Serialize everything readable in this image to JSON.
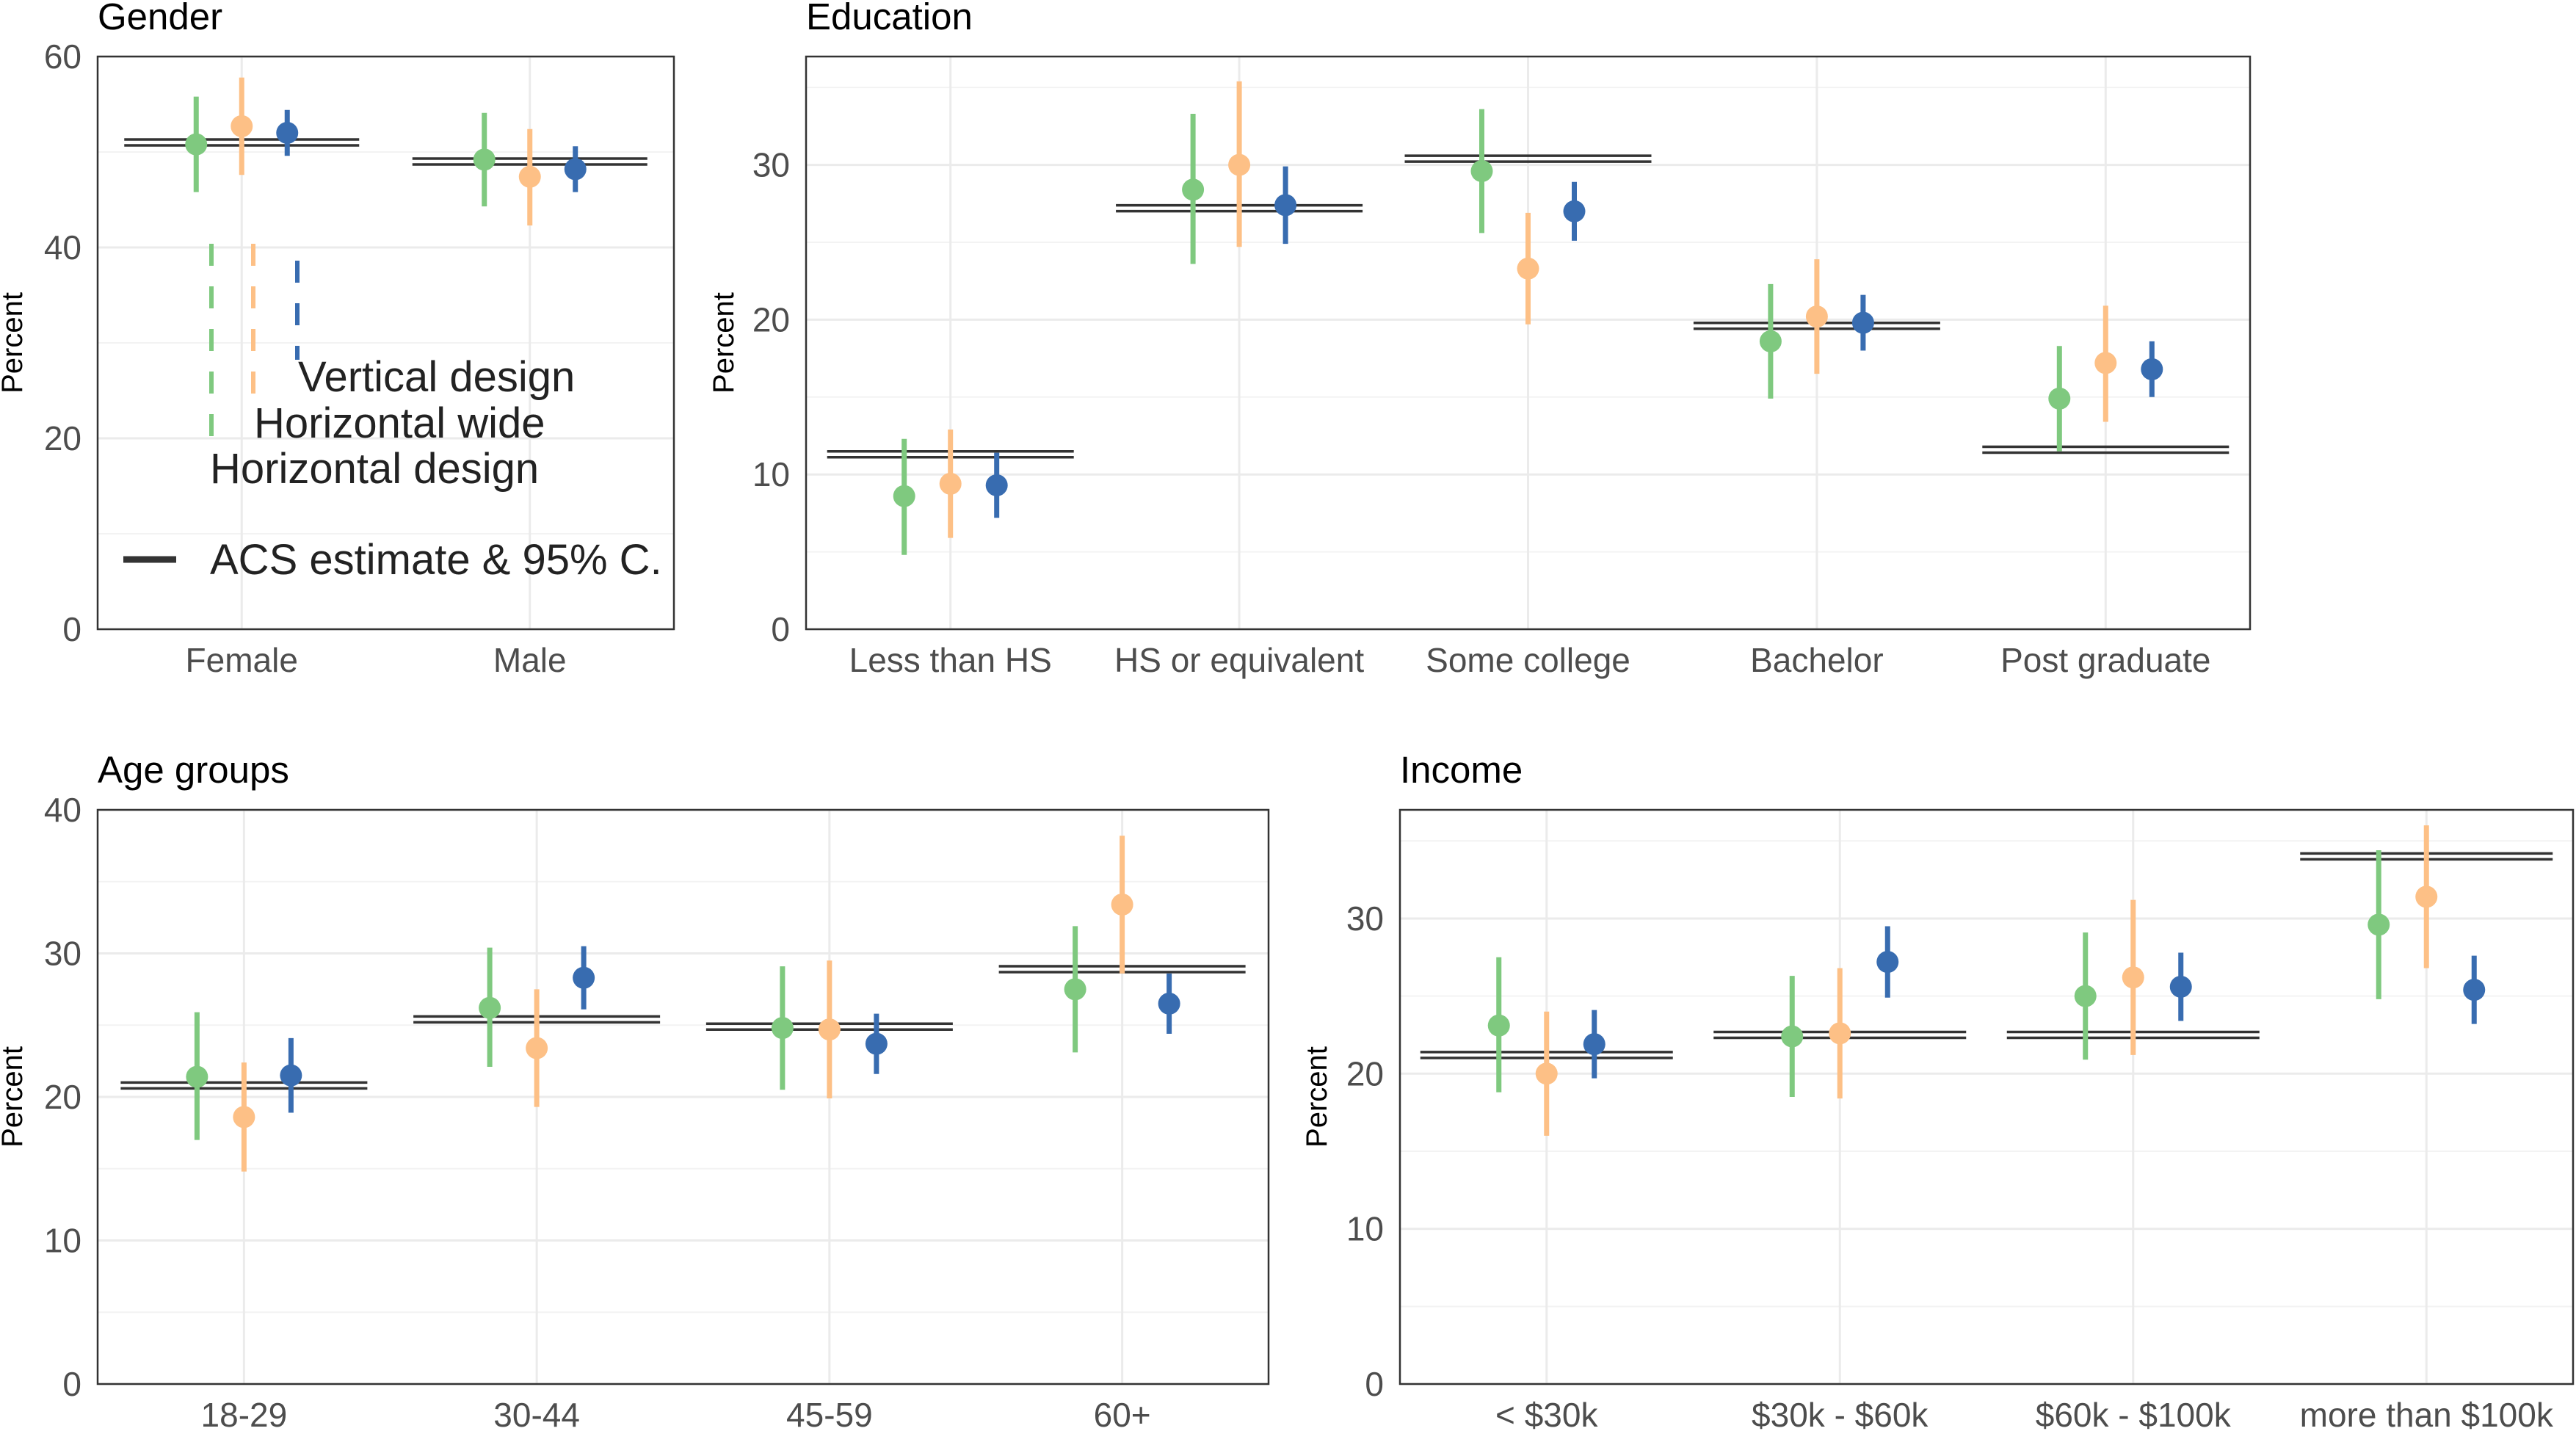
{
  "colors": {
    "horizontal_design": "#7fc97f",
    "horizontal_wide": "#fdc086",
    "vertical_design": "#386cb0",
    "acs": "#333333"
  },
  "legend": {
    "vertical_design": "Vertical design",
    "horizontal_wide": "Horizontal wide",
    "horizontal_design": "Horizontal design",
    "acs": "ACS estimate & 95% C."
  },
  "chart_data": [
    {
      "type": "scatter",
      "title": "Gender",
      "ylabel": "Percent",
      "ylim": [
        0,
        60
      ],
      "yticks": [
        0,
        20,
        40,
        60
      ],
      "categories": [
        "Female",
        "Male"
      ],
      "acs": [
        51,
        49
      ],
      "series": [
        {
          "name": "Horizontal design",
          "values": [
            50.8,
            49.2
          ],
          "lower": [
            45.8,
            44.3
          ],
          "upper": [
            55.8,
            54.1
          ]
        },
        {
          "name": "Horizontal wide",
          "values": [
            52.7,
            47.4
          ],
          "lower": [
            47.6,
            42.3
          ],
          "upper": [
            57.8,
            52.4
          ]
        },
        {
          "name": "Vertical design",
          "values": [
            52.0,
            48.2
          ],
          "lower": [
            49.6,
            45.8
          ],
          "upper": [
            54.4,
            50.6
          ]
        }
      ]
    },
    {
      "type": "scatter",
      "title": "Education",
      "ylabel": "Percent",
      "ylim": [
        0,
        37
      ],
      "yticks": [
        0,
        10,
        20,
        30
      ],
      "categories": [
        "Less than HS",
        "HS or equivalent",
        "Some college",
        "Bachelor",
        "Post graduate"
      ],
      "acs": [
        11.3,
        27.2,
        30.4,
        19.6,
        11.6
      ],
      "series": [
        {
          "name": "Horizontal design",
          "values": [
            8.6,
            28.4,
            29.6,
            18.6,
            14.9
          ],
          "lower": [
            4.8,
            23.6,
            25.6,
            14.9,
            11.5
          ],
          "upper": [
            12.3,
            33.3,
            33.6,
            22.3,
            18.3
          ]
        },
        {
          "name": "Horizontal wide",
          "values": [
            9.4,
            30.0,
            23.3,
            20.2,
            17.2
          ],
          "lower": [
            5.9,
            24.7,
            19.7,
            16.5,
            13.4
          ],
          "upper": [
            12.9,
            35.4,
            26.9,
            23.9,
            20.9
          ]
        },
        {
          "name": "Vertical design",
          "values": [
            9.3,
            27.4,
            27.0,
            19.8,
            16.8
          ],
          "lower": [
            7.2,
            24.9,
            25.1,
            18.0,
            15.0
          ],
          "upper": [
            11.4,
            29.9,
            28.9,
            21.6,
            18.6
          ]
        }
      ]
    },
    {
      "type": "scatter",
      "title": "Age groups",
      "ylabel": "Percent",
      "ylim": [
        0,
        40
      ],
      "yticks": [
        0,
        10,
        20,
        30,
        40
      ],
      "categories": [
        "18-29",
        "30-44",
        "45-59",
        "60+"
      ],
      "acs": [
        20.8,
        25.4,
        24.9,
        28.9
      ],
      "series": [
        {
          "name": "Horizontal design",
          "values": [
            21.4,
            26.2,
            24.8,
            27.5
          ],
          "lower": [
            17.0,
            22.1,
            20.5,
            23.1
          ],
          "upper": [
            25.9,
            30.4,
            29.1,
            31.9
          ]
        },
        {
          "name": "Horizontal wide",
          "values": [
            18.6,
            23.4,
            24.7,
            33.4
          ],
          "lower": [
            14.8,
            19.3,
            19.9,
            28.6
          ],
          "upper": [
            22.4,
            27.5,
            29.5,
            38.2
          ]
        },
        {
          "name": "Vertical design",
          "values": [
            21.5,
            28.3,
            23.7,
            26.5
          ],
          "lower": [
            18.9,
            26.1,
            21.6,
            24.4
          ],
          "upper": [
            24.1,
            30.5,
            25.8,
            28.6
          ]
        }
      ]
    },
    {
      "type": "scatter",
      "title": "Income",
      "ylabel": "Percent",
      "ylim": [
        0,
        37
      ],
      "yticks": [
        0,
        10,
        20,
        30
      ],
      "categories": [
        "< $30k",
        "$30k - $60k",
        "$60k - $100k",
        "more than $100k"
      ],
      "acs": [
        21.2,
        22.5,
        22.5,
        34.0
      ],
      "series": [
        {
          "name": "Horizontal design",
          "values": [
            23.1,
            22.4,
            25.0,
            29.6
          ],
          "lower": [
            18.8,
            18.5,
            20.9,
            24.8
          ],
          "upper": [
            27.5,
            26.3,
            29.1,
            34.4
          ]
        },
        {
          "name": "Horizontal wide",
          "values": [
            20.0,
            22.6,
            26.2,
            31.4
          ],
          "lower": [
            16.0,
            18.4,
            21.2,
            26.8
          ],
          "upper": [
            24.0,
            26.8,
            31.2,
            36.0
          ]
        },
        {
          "name": "Vertical design",
          "values": [
            21.9,
            27.2,
            25.6,
            25.4
          ],
          "lower": [
            19.7,
            24.9,
            23.4,
            23.2
          ],
          "upper": [
            24.1,
            29.5,
            27.8,
            27.6
          ]
        }
      ]
    }
  ]
}
